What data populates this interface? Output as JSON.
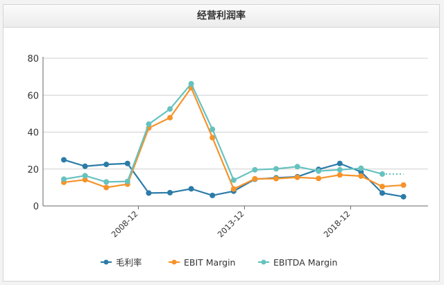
{
  "panel": {
    "title": "经营利润率"
  },
  "chart_data": {
    "type": "line",
    "title": "经营利润率",
    "xlabel": "",
    "ylabel": "",
    "ylim": [
      0,
      80
    ],
    "yticks": [
      "0",
      "20",
      "40",
      "60",
      "80"
    ],
    "x": [
      "2004-12",
      "2005-12",
      "2006-12",
      "2007-12",
      "2008-12",
      "2009-12",
      "2010-12",
      "2011-12",
      "2012-12",
      "2013-12",
      "2014-12",
      "2015-12",
      "2016-12",
      "2017-12",
      "2018-12",
      "2019-12",
      "2020-12"
    ],
    "xtick_labels": [
      "2008-12",
      "2013-12",
      "2018-12"
    ],
    "grid": true,
    "legend": "bottom",
    "series": [
      {
        "name": "毛利率",
        "color": "#2b7ba8",
        "values": [
          25,
          21.5,
          22.5,
          23,
          7,
          7.2,
          9.3,
          5.7,
          8,
          14.5,
          15.2,
          15.8,
          19.8,
          23,
          18.5,
          7,
          5
        ]
      },
      {
        "name": "EBIT Margin",
        "color": "#f5932a",
        "values": [
          12.8,
          14.2,
          10,
          11.8,
          42.2,
          47.8,
          64,
          37,
          9.2,
          14.7,
          14.8,
          15.5,
          14.9,
          16.8,
          16.2,
          10.5,
          11.3
        ]
      },
      {
        "name": "EBITDA Margin",
        "color": "#66c2bf",
        "values": [
          14.5,
          16.4,
          13,
          13.3,
          44.3,
          52.5,
          66.2,
          41.5,
          14,
          19.6,
          20.1,
          21.3,
          18.9,
          19.6,
          20.4,
          17.3,
          17.3
        ],
        "last_segment": "dotted"
      }
    ]
  }
}
